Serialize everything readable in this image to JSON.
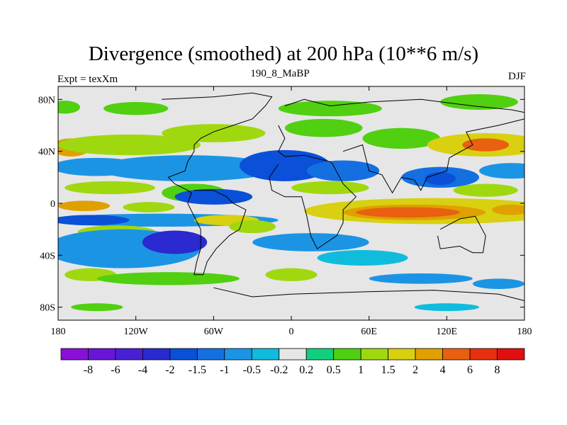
{
  "title": "Divergence (smoothed) at 200 hPa (10**6 m/s)",
  "subtitle_left": "Expt = texXm",
  "subtitle_center": "190_8_MaBP",
  "subtitle_right": "DJF",
  "chart_data": {
    "type": "heatmap",
    "title": "Divergence (smoothed) at 200 hPa (10**6 m/s)",
    "variable": "Divergence (smoothed) at 200 hPa",
    "units": "10**6 m/s",
    "experiment": "texXm",
    "run": "190_8_MaBP",
    "season": "DJF",
    "xlim": [
      -180,
      180
    ],
    "ylim": [
      -90,
      90
    ],
    "x_ticks": [
      -180,
      -120,
      -60,
      0,
      60,
      120,
      180
    ],
    "x_tick_labels": [
      "180",
      "120W",
      "60W",
      "0",
      "60E",
      "120E",
      "180"
    ],
    "y_ticks": [
      80,
      40,
      0,
      -40,
      -80
    ],
    "y_tick_labels": [
      "80N",
      "40N",
      "0",
      "40S",
      "80S"
    ],
    "colorbar_levels": [
      "-8",
      "-6",
      "-4",
      "-2",
      "-1.5",
      "-1",
      "-0.5",
      "-0.2",
      "0.2",
      "0.5",
      "1",
      "1.5",
      "2",
      "4",
      "6",
      "8"
    ],
    "colorbar_colors": [
      "#8a10d8",
      "#6a14d8",
      "#4a20d4",
      "#2a2ad0",
      "#0a50d8",
      "#1470e0",
      "#1c94e4",
      "#10bcdc",
      "#e6e6e6",
      "#10d080",
      "#50d010",
      "#a0d810",
      "#d8d010",
      "#e0a000",
      "#e86010",
      "#e83010",
      "#e01010"
    ],
    "blobs": [
      {
        "lon": -170,
        "lat": 43,
        "rlon": 15,
        "rlat": 7,
        "value": 2
      },
      {
        "lon": -125,
        "lat": 45,
        "rlon": 55,
        "rlat": 8,
        "value": 1
      },
      {
        "lon": -60,
        "lat": 54,
        "rlon": 40,
        "rlat": 7,
        "value": 1
      },
      {
        "lon": 25,
        "lat": 58,
        "rlon": 30,
        "rlat": 7,
        "value": 0.5
      },
      {
        "lon": 85,
        "lat": 50,
        "rlon": 30,
        "rlat": 8,
        "value": 0.5
      },
      {
        "lon": 150,
        "lat": 45,
        "rlon": 45,
        "rlat": 9,
        "value": 1.5
      },
      {
        "lon": 150,
        "lat": 45,
        "rlon": 18,
        "rlat": 5,
        "value": 4
      },
      {
        "lon": -175,
        "lat": 74,
        "rlon": 12,
        "rlat": 5,
        "value": 0.5
      },
      {
        "lon": -120,
        "lat": 73,
        "rlon": 25,
        "rlat": 5,
        "value": 0.5
      },
      {
        "lon": 30,
        "lat": 73,
        "rlon": 40,
        "rlat": 6,
        "value": 0.5
      },
      {
        "lon": 145,
        "lat": 78,
        "rlon": 30,
        "rlat": 6,
        "value": 0.5
      },
      {
        "lon": -150,
        "lat": 28,
        "rlon": 35,
        "rlat": 7,
        "value": -1
      },
      {
        "lon": -80,
        "lat": 27,
        "rlon": 70,
        "rlat": 10,
        "value": -1
      },
      {
        "lon": -5,
        "lat": 29,
        "rlon": 35,
        "rlat": 12,
        "value": -2
      },
      {
        "lon": 40,
        "lat": 25,
        "rlon": 28,
        "rlat": 8,
        "value": -1.5
      },
      {
        "lon": 115,
        "lat": 20,
        "rlon": 30,
        "rlat": 8,
        "value": -1.5
      },
      {
        "lon": 115,
        "lat": 19,
        "rlon": 12,
        "rlat": 5,
        "value": -2
      },
      {
        "lon": 170,
        "lat": 25,
        "rlon": 25,
        "rlat": 6,
        "value": -1
      },
      {
        "lon": -140,
        "lat": 12,
        "rlon": 35,
        "rlat": 5,
        "value": 1
      },
      {
        "lon": -75,
        "lat": 8,
        "rlon": 25,
        "rlat": 7,
        "value": 0.5
      },
      {
        "lon": 30,
        "lat": 12,
        "rlon": 30,
        "rlat": 5,
        "value": 1
      },
      {
        "lon": 150,
        "lat": 10,
        "rlon": 25,
        "rlat": 5,
        "value": 1
      },
      {
        "lon": -60,
        "lat": 5,
        "rlon": 30,
        "rlat": 6,
        "value": -2
      },
      {
        "lon": -160,
        "lat": -2,
        "rlon": 20,
        "rlat": 4,
        "value": 2
      },
      {
        "lon": -110,
        "lat": -3,
        "rlon": 20,
        "rlat": 4,
        "value": 1
      },
      {
        "lon": 110,
        "lat": -6,
        "rlon": 100,
        "rlat": 10,
        "value": 1.5
      },
      {
        "lon": 95,
        "lat": -7,
        "rlon": 55,
        "rlat": 6,
        "value": 2
      },
      {
        "lon": 90,
        "lat": -7,
        "rlon": 40,
        "rlat": 4,
        "value": 4
      },
      {
        "lon": 170,
        "lat": -5,
        "rlon": 15,
        "rlat": 4,
        "value": 2
      },
      {
        "lon": -100,
        "lat": -13,
        "rlon": 90,
        "rlat": 5,
        "value": -1
      },
      {
        "lon": -155,
        "lat": -13,
        "rlon": 30,
        "rlat": 4,
        "value": -2
      },
      {
        "lon": -50,
        "lat": -13,
        "rlon": 25,
        "rlat": 4,
        "value": 1.5
      },
      {
        "lon": -135,
        "lat": -22,
        "rlon": 30,
        "rlat": 5,
        "value": 1
      },
      {
        "lon": -30,
        "lat": -18,
        "rlon": 18,
        "rlat": 5,
        "value": 1
      },
      {
        "lon": -130,
        "lat": -35,
        "rlon": 60,
        "rlat": 15,
        "value": -1
      },
      {
        "lon": -90,
        "lat": -30,
        "rlon": 25,
        "rlat": 9,
        "value": -4
      },
      {
        "lon": 15,
        "lat": -30,
        "rlon": 45,
        "rlat": 7,
        "value": -1
      },
      {
        "lon": 55,
        "lat": -42,
        "rlon": 35,
        "rlat": 6,
        "value": -0.5
      },
      {
        "lon": -155,
        "lat": -55,
        "rlon": 20,
        "rlat": 5,
        "value": 1
      },
      {
        "lon": -95,
        "lat": -58,
        "rlon": 55,
        "rlat": 5,
        "value": 0.5
      },
      {
        "lon": 0,
        "lat": -55,
        "rlon": 20,
        "rlat": 5,
        "value": 1
      },
      {
        "lon": 100,
        "lat": -58,
        "rlon": 40,
        "rlat": 4,
        "value": -1
      },
      {
        "lon": 160,
        "lat": -62,
        "rlon": 20,
        "rlat": 4,
        "value": -1
      },
      {
        "lon": -150,
        "lat": -80,
        "rlon": 20,
        "rlat": 3,
        "value": 0.5
      },
      {
        "lon": 120,
        "lat": -80,
        "rlon": 25,
        "rlat": 3,
        "value": -0.5
      }
    ],
    "coastlines": [
      [
        [
          -100,
          80
        ],
        [
          -60,
          82
        ],
        [
          -30,
          85
        ],
        [
          -15,
          82
        ],
        [
          -20,
          75
        ],
        [
          -30,
          65
        ],
        [
          -45,
          60
        ],
        [
          -60,
          55
        ],
        [
          -70,
          50
        ],
        [
          -75,
          45
        ],
        [
          -75,
          40
        ],
        [
          -80,
          32
        ],
        [
          -82,
          25
        ],
        [
          -95,
          20
        ],
        [
          -90,
          15
        ],
        [
          -80,
          10
        ],
        [
          -77,
          8
        ],
        [
          -80,
          0
        ],
        [
          -75,
          -10
        ],
        [
          -70,
          -20
        ],
        [
          -70,
          -35
        ],
        [
          -73,
          -45
        ],
        [
          -75,
          -55
        ],
        [
          -68,
          -55
        ],
        [
          -65,
          -45
        ],
        [
          -58,
          -35
        ],
        [
          -48,
          -25
        ],
        [
          -40,
          -20
        ],
        [
          -35,
          -5
        ],
        [
          -45,
          0
        ],
        [
          -50,
          5
        ],
        [
          -60,
          10
        ],
        [
          -75,
          10
        ]
      ],
      [
        [
          -5,
          75
        ],
        [
          10,
          80
        ],
        [
          30,
          75
        ],
        [
          60,
          78
        ],
        [
          100,
          80
        ],
        [
          140,
          75
        ],
        [
          170,
          72
        ],
        [
          180,
          70
        ]
      ],
      [
        [
          -10,
          60
        ],
        [
          -5,
          50
        ],
        [
          -10,
          40
        ],
        [
          -5,
          36
        ],
        [
          10,
          37
        ],
        [
          30,
          32
        ],
        [
          32,
          30
        ],
        [
          40,
          15
        ],
        [
          45,
          10
        ],
        [
          50,
          5
        ],
        [
          40,
          -5
        ],
        [
          40,
          -15
        ],
        [
          35,
          -25
        ],
        [
          20,
          -35
        ],
        [
          15,
          -25
        ],
        [
          12,
          -10
        ],
        [
          8,
          5
        ],
        [
          -5,
          5
        ],
        [
          -15,
          10
        ],
        [
          -17,
          20
        ],
        [
          -10,
          30
        ]
      ],
      [
        [
          40,
          40
        ],
        [
          55,
          45
        ],
        [
          60,
          25
        ],
        [
          70,
          22
        ],
        [
          78,
          8
        ],
        [
          85,
          20
        ],
        [
          95,
          18
        ],
        [
          100,
          10
        ],
        [
          105,
          20
        ],
        [
          120,
          25
        ],
        [
          122,
          35
        ],
        [
          140,
          45
        ],
        [
          135,
          55
        ],
        [
          160,
          60
        ],
        [
          180,
          65
        ]
      ],
      [
        [
          115,
          -20
        ],
        [
          130,
          -12
        ],
        [
          142,
          -10
        ],
        [
          150,
          -25
        ],
        [
          148,
          -38
        ],
        [
          140,
          -38
        ],
        [
          130,
          -33
        ],
        [
          115,
          -35
        ],
        [
          113,
          -25
        ]
      ],
      [
        [
          -60,
          -65
        ],
        [
          -30,
          -72
        ],
        [
          0,
          -70
        ],
        [
          60,
          -68
        ],
        [
          110,
          -67
        ],
        [
          160,
          -70
        ],
        [
          180,
          -75
        ]
      ]
    ]
  }
}
